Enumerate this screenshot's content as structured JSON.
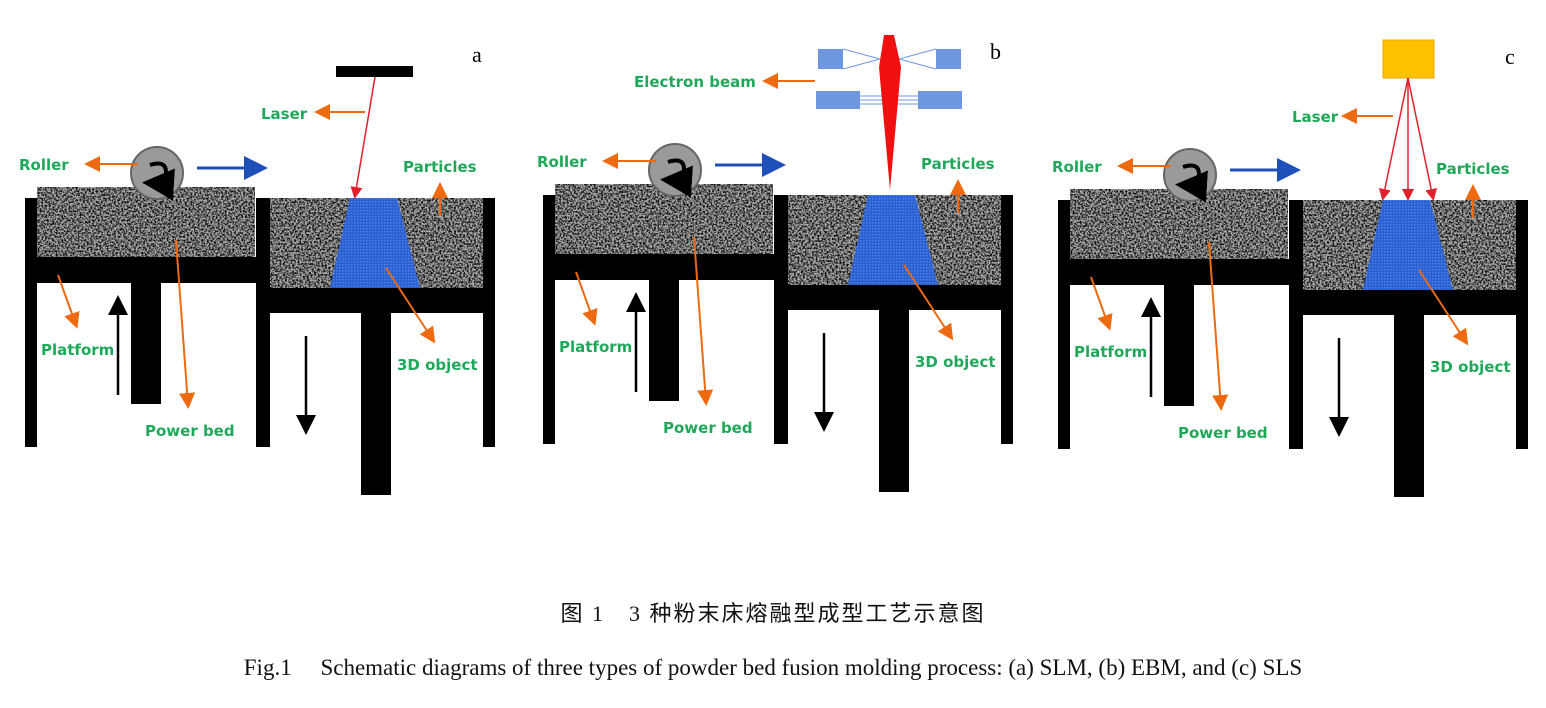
{
  "panels": [
    {
      "letter": "a",
      "source": "laser-bar",
      "labels": {
        "source": "Laser",
        "roller": "Roller",
        "particles": "Particles",
        "platform": "Platform",
        "bed": "Power bed",
        "object": "3D object"
      }
    },
    {
      "letter": "b",
      "source": "electron-gun",
      "labels": {
        "source": "Electron beam",
        "roller": "Roller",
        "particles": "Particles",
        "platform": "Platform",
        "bed": "Power bed",
        "object": "3D object"
      }
    },
    {
      "letter": "c",
      "source": "laser-box",
      "labels": {
        "source": "Laser",
        "roller": "Roller",
        "particles": "Particles",
        "platform": "Platform",
        "bed": "Power bed",
        "object": "3D object"
      }
    }
  ],
  "colors": {
    "label": "#1fa85a",
    "pointer": "#ee6a10",
    "laser": "#e0202a",
    "object": "#2a5fd0",
    "motion_arrow": "#1f4fb8",
    "laser_box": "#ffc000",
    "gun": "#6f97e0"
  },
  "caption": {
    "cn": "图 1　3 种粉末床熔融型成型工艺示意图",
    "en": "Fig.1　 Schematic diagrams of three types of powder bed fusion molding process: (a) SLM, (b) EBM, and (c) SLS"
  }
}
